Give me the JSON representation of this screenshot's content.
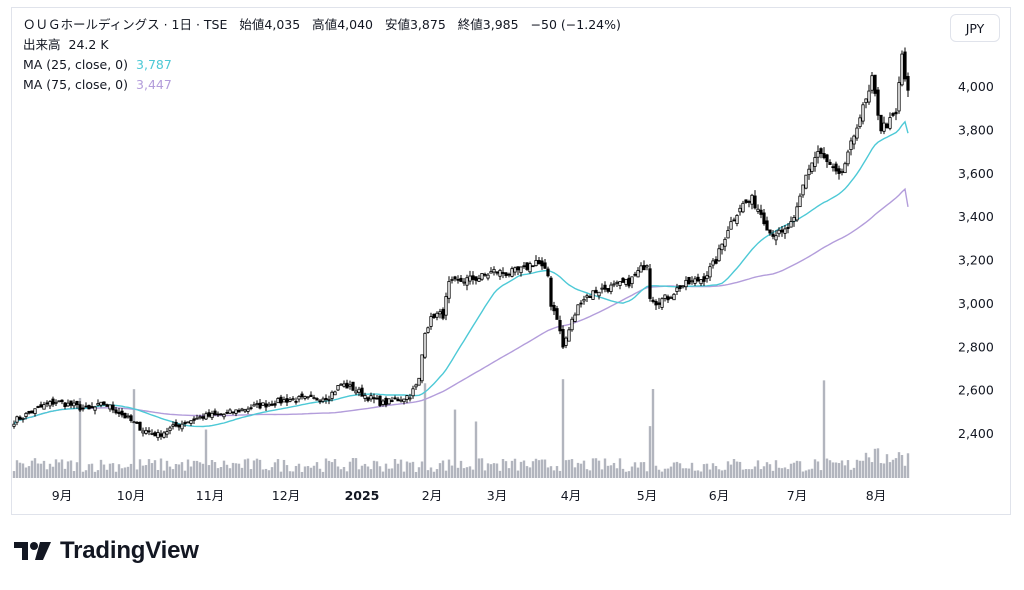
{
  "header": {
    "title": "ＯＵＧホールディングス · 1日 · TSE",
    "open_label": "始値",
    "open": "4,035",
    "high_label": "高値",
    "high": "4,040",
    "low_label": "安値",
    "low": "3,875",
    "close_label": "終値",
    "close": "3,985",
    "change": "−50 (−1.24%)",
    "volume_label": "出来高",
    "volume": "24.2 K",
    "ma25_label": "MA (25, close, 0)",
    "ma25_value": "3,787",
    "ma75_label": "MA (75, close, 0)",
    "ma75_value": "3,447"
  },
  "currency_button": "JPY",
  "branding": {
    "logo_text": "TradingView"
  },
  "colors": {
    "ma25": "#4dc9d6",
    "ma75": "#b39ddb",
    "candle": "#000000",
    "volume": "#b2b5be"
  },
  "chart_data": {
    "type": "candlestick",
    "y_axis": {
      "ticks": [
        2400,
        2600,
        2800,
        3000,
        3200,
        3400,
        3600,
        3800,
        4000
      ],
      "tick_labels": [
        "2,400",
        "2,600",
        "2,800",
        "3,000",
        "3,200",
        "3,400",
        "3,600",
        "3,800",
        "4,000"
      ],
      "position": "right"
    },
    "x_axis": {
      "tick_labels": [
        "9月",
        "10月",
        "11月",
        "12月",
        "2025",
        "2月",
        "3月",
        "4月",
        "5月",
        "6月",
        "7月",
        "8月"
      ]
    },
    "series": [
      {
        "name": "price",
        "close_anchors": [
          [
            0,
            2460
          ],
          [
            10,
            2530
          ],
          [
            14,
            2550
          ],
          [
            20,
            2530
          ],
          [
            25,
            2510
          ],
          [
            30,
            2540
          ],
          [
            35,
            2500
          ],
          [
            38,
            2470
          ],
          [
            43,
            2420
          ],
          [
            48,
            2395
          ],
          [
            53,
            2430
          ],
          [
            58,
            2460
          ],
          [
            63,
            2480
          ],
          [
            70,
            2490
          ],
          [
            78,
            2520
          ],
          [
            85,
            2540
          ],
          [
            92,
            2560
          ],
          [
            100,
            2560
          ],
          [
            105,
            2575
          ],
          [
            109,
            2630
          ],
          [
            113,
            2610
          ],
          [
            118,
            2570
          ],
          [
            123,
            2540
          ],
          [
            128,
            2560
          ],
          [
            132,
            2580
          ],
          [
            134,
            2620
          ],
          [
            135,
            2650
          ],
          [
            137,
            2880
          ],
          [
            140,
            2950
          ],
          [
            143,
            2950
          ],
          [
            145,
            3090
          ],
          [
            150,
            3110
          ],
          [
            155,
            3120
          ],
          [
            160,
            3150
          ],
          [
            165,
            3140
          ],
          [
            170,
            3160
          ],
          [
            174,
            3200
          ],
          [
            178,
            3130
          ],
          [
            179,
            3000
          ],
          [
            181,
            2940
          ],
          [
            183,
            2800
          ],
          [
            186,
            2920
          ],
          [
            189,
            3020
          ],
          [
            194,
            3060
          ],
          [
            200,
            3080
          ],
          [
            205,
            3100
          ],
          [
            209,
            3160
          ],
          [
            211,
            3190
          ],
          [
            212,
            3040
          ],
          [
            214,
            3010
          ],
          [
            218,
            3030
          ],
          [
            222,
            3080
          ],
          [
            226,
            3100
          ],
          [
            230,
            3120
          ],
          [
            234,
            3200
          ],
          [
            238,
            3350
          ],
          [
            242,
            3450
          ],
          [
            246,
            3480
          ],
          [
            249,
            3420
          ],
          [
            252,
            3330
          ],
          [
            256,
            3320
          ],
          [
            260,
            3380
          ],
          [
            264,
            3600
          ],
          [
            268,
            3700
          ],
          [
            271,
            3650
          ],
          [
            275,
            3580
          ],
          [
            278,
            3680
          ],
          [
            281,
            3830
          ],
          [
            285,
            3970
          ],
          [
            286,
            4030
          ],
          [
            289,
            3810
          ],
          [
            292,
            3840
          ],
          [
            294,
            3870
          ],
          [
            296,
            4150
          ],
          [
            297,
            4040
          ],
          [
            298,
            3985
          ]
        ]
      },
      {
        "name": "MA (25, close, 0)",
        "value": 3787
      },
      {
        "name": "MA (75, close, 0)",
        "value": 3447
      }
    ],
    "volume_spikes": {
      "bars_index": [
        22,
        40,
        64,
        137,
        147,
        154,
        183,
        212,
        213,
        270,
        294
      ],
      "last_value": "24.2K"
    }
  }
}
